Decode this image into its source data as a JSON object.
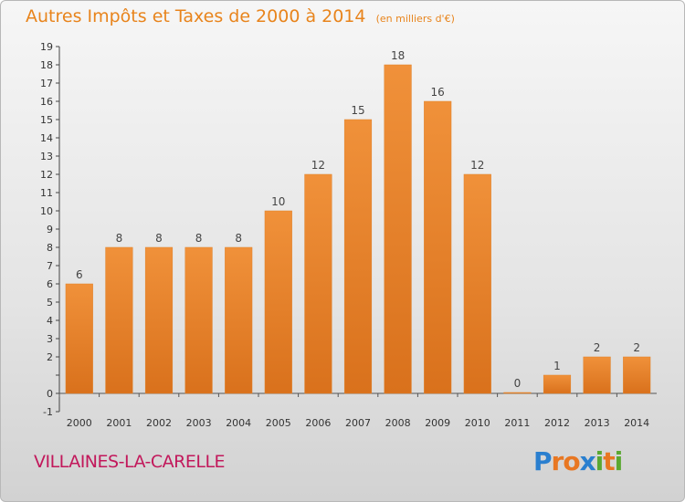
{
  "chart_data": {
    "type": "bar",
    "title": "Autres Impôts et Taxes de 2000 à 2014",
    "unit_label": "(en milliers d'€)",
    "categories": [
      "2000",
      "2001",
      "2002",
      "2003",
      "2004",
      "2005",
      "2006",
      "2007",
      "2008",
      "2009",
      "2010",
      "2011",
      "2012",
      "2013",
      "2014"
    ],
    "values": [
      6,
      8,
      8,
      8,
      8,
      10,
      12,
      15,
      18,
      16,
      12,
      0,
      1,
      2,
      2
    ],
    "value_labels": [
      "6",
      "8",
      "8",
      "8",
      "8",
      "10",
      "12",
      "15",
      "18",
      "16",
      "12",
      "0",
      "1",
      "2",
      "2"
    ],
    "ylim": [
      -1,
      19
    ],
    "yticks": [
      -1,
      0,
      1,
      2,
      3,
      4,
      5,
      6,
      7,
      8,
      9,
      10,
      11,
      12,
      13,
      14,
      15,
      16,
      17,
      18,
      19
    ],
    "ytick_labels": [
      "-1",
      "0",
      "",
      "2",
      "3",
      "4",
      "5",
      "6",
      "7",
      "8",
      "9",
      "10",
      "11",
      "12",
      "13",
      "14",
      "15",
      "16",
      "17",
      "18",
      "19"
    ],
    "grid": false,
    "bar_color": "#f0913a",
    "bar_color_dark": "#d9711c"
  },
  "footer": {
    "commune": "VILLAINES-LA-CARELLE",
    "logo_letters": [
      "P",
      "r",
      "o",
      "x",
      "i",
      "t",
      "i"
    ],
    "logo_colors": [
      "#2a7fcf",
      "#e87722",
      "#e87722",
      "#2a7fcf",
      "#5aa832",
      "#e87722",
      "#5aa832"
    ]
  }
}
